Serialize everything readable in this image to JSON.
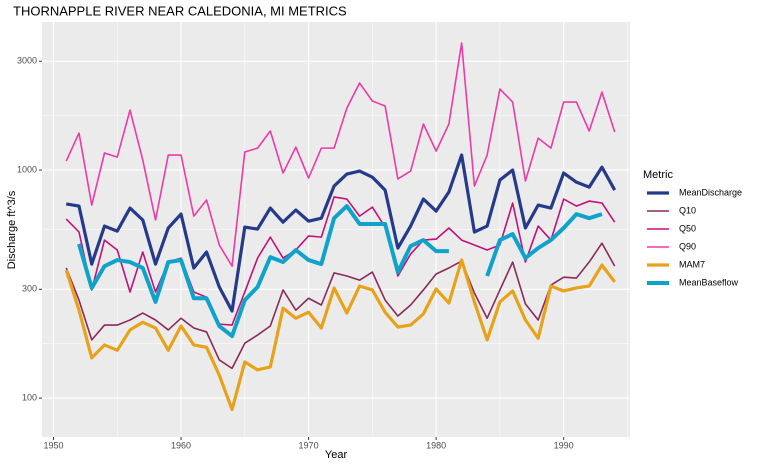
{
  "chart_data": {
    "type": "line",
    "title": "THORNAPPLE RIVER NEAR CALEDONIA, MI  METRICS",
    "x_label": "Year",
    "y_label": "Discharge ft^3/s",
    "legend_title": "Metric",
    "legend": "right",
    "log_y": true,
    "grid": true,
    "x": [
      1951,
      1952,
      1953,
      1954,
      1955,
      1956,
      1957,
      1958,
      1959,
      1960,
      1961,
      1962,
      1963,
      1964,
      1965,
      1966,
      1967,
      1968,
      1969,
      1970,
      1971,
      1972,
      1973,
      1974,
      1975,
      1976,
      1977,
      1978,
      1979,
      1980,
      1981,
      1982,
      1983,
      1984,
      1985,
      1986,
      1987,
      1988,
      1989,
      1990,
      1991,
      1992,
      1993,
      1994
    ],
    "xlim": [
      1949.1,
      1995.2
    ],
    "xticks": [
      1950,
      1960,
      1970,
      1980,
      1990
    ],
    "ylim": [
      67.5,
      4460
    ],
    "yticks": [
      100,
      300,
      1000,
      3000
    ],
    "series": [
      {
        "name": "MeanDischarge",
        "color": "#253a8a",
        "linewidth": 3.2,
        "values": [
          710,
          695,
          387,
          568,
          540,
          681,
          604,
          387,
          557,
          641,
          372,
          437,
          307,
          241,
          562,
          551,
          681,
          591,
          668,
          597,
          615,
          851,
          960,
          990,
          931,
          817,
          455,
          568,
          746,
          661,
          801,
          1164,
          535,
          568,
          904,
          1000,
          557,
          702,
          681,
          970,
          885,
          842,
          1030,
          817
        ]
      },
      {
        "name": "Q10",
        "color": "#8b2a5b",
        "linewidth": 1.6,
        "values": [
          372,
          269,
          180,
          209,
          209,
          220,
          236,
          220,
          199,
          224,
          203,
          195,
          147,
          135,
          174,
          189,
          207,
          298,
          243,
          274,
          256,
          354,
          343,
          329,
          357,
          269,
          229,
          256,
          298,
          350,
          372,
          399,
          289,
          224,
          298,
          395,
          259,
          220,
          313,
          339,
          336,
          395,
          478,
          379
        ]
      },
      {
        "name": "Q50",
        "color": "#c2127a",
        "linewidth": 1.6,
        "values": [
          610,
          535,
          298,
          493,
          446,
          292,
          437,
          292,
          395,
          411,
          292,
          277,
          211,
          209,
          292,
          411,
          508,
          411,
          446,
          514,
          508,
          762,
          746,
          628,
          688,
          562,
          343,
          428,
          493,
          498,
          557,
          493,
          469,
          446,
          469,
          717,
          395,
          568,
          493,
          746,
          695,
          731,
          717,
          591
        ]
      },
      {
        "name": "Q90",
        "color": "#ee3aa6",
        "linewidth": 1.6,
        "values": [
          1095,
          1453,
          702,
          1188,
          1140,
          1833,
          1106,
          604,
          1164,
          1164,
          628,
          739,
          469,
          379,
          1200,
          1248,
          1483,
          970,
          1261,
          922,
          1248,
          1248,
          1870,
          2408,
          2008,
          1909,
          914,
          990,
          1592,
          1211,
          1592,
          3606,
          851,
          1164,
          2266,
          1988,
          895,
          1380,
          1248,
          1988,
          1988,
          1483,
          2198,
          1468
        ]
      },
      {
        "name": "MAM7",
        "color": "#e8a21a",
        "linewidth": 3.2,
        "values": [
          364,
          243,
          150,
          171,
          162,
          199,
          215,
          203,
          162,
          207,
          171,
          167,
          126,
          89,
          144,
          133,
          137,
          248,
          224,
          238,
          203,
          304,
          236,
          310,
          298,
          238,
          205,
          209,
          234,
          301,
          261,
          403,
          264,
          180,
          264,
          295,
          220,
          183,
          310,
          295,
          304,
          310,
          383,
          323
        ]
      },
      {
        "name": "MeanBaseflow",
        "color": "#0fa3cc",
        "linewidth": 4,
        "values": [
          null,
          474,
          304,
          379,
          403,
          395,
          372,
          264,
          395,
          403,
          274,
          274,
          207,
          187,
          269,
          307,
          415,
          395,
          446,
          403,
          387,
          615,
          695,
          580,
          580,
          580,
          357,
          464,
          493,
          441,
          441,
          null,
          null,
          343,
          493,
          524,
          411,
          455,
          493,
          557,
          641,
          615,
          641,
          null
        ]
      }
    ]
  }
}
